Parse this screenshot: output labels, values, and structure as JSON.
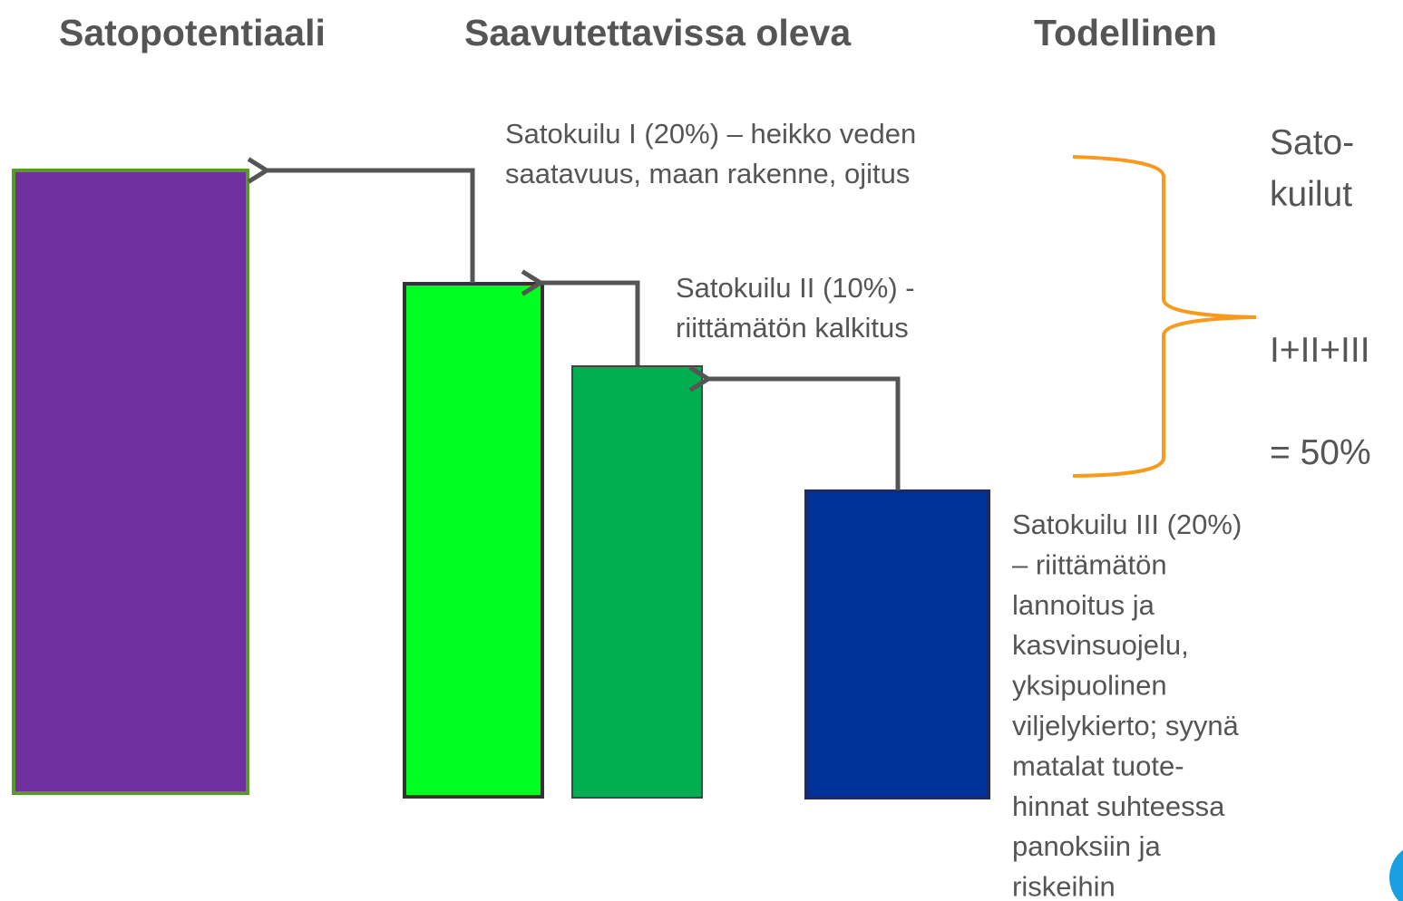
{
  "headers": [
    "Satopotentiaali",
    "Saavutettavissa oleva",
    "Todellinen"
  ],
  "gaps": [
    {
      "lines": [
        "Satokuilu I (20%) – heikko veden",
        "saatavuus, maan rakenne, ojitus"
      ]
    },
    {
      "lines": [
        "Satokuilu II (10%)  -",
        "riittämätön kalkitus"
      ]
    },
    {
      "lines": [
        "Satokuilu III (20%)",
        "–  riittämätön",
        "lannoitus ja",
        "kasvinsuojelu,",
        "yksipuolinen",
        "viljelykierto; syynä",
        "matalat  tuote-",
        "hinnat suhteessa",
        "panoksiin ja",
        "riskeihin"
      ]
    }
  ],
  "brace": {
    "label_lines": [
      "Sato-",
      "kuilut"
    ],
    "formula": "I+II+III",
    "result": "= 50%"
  }
}
